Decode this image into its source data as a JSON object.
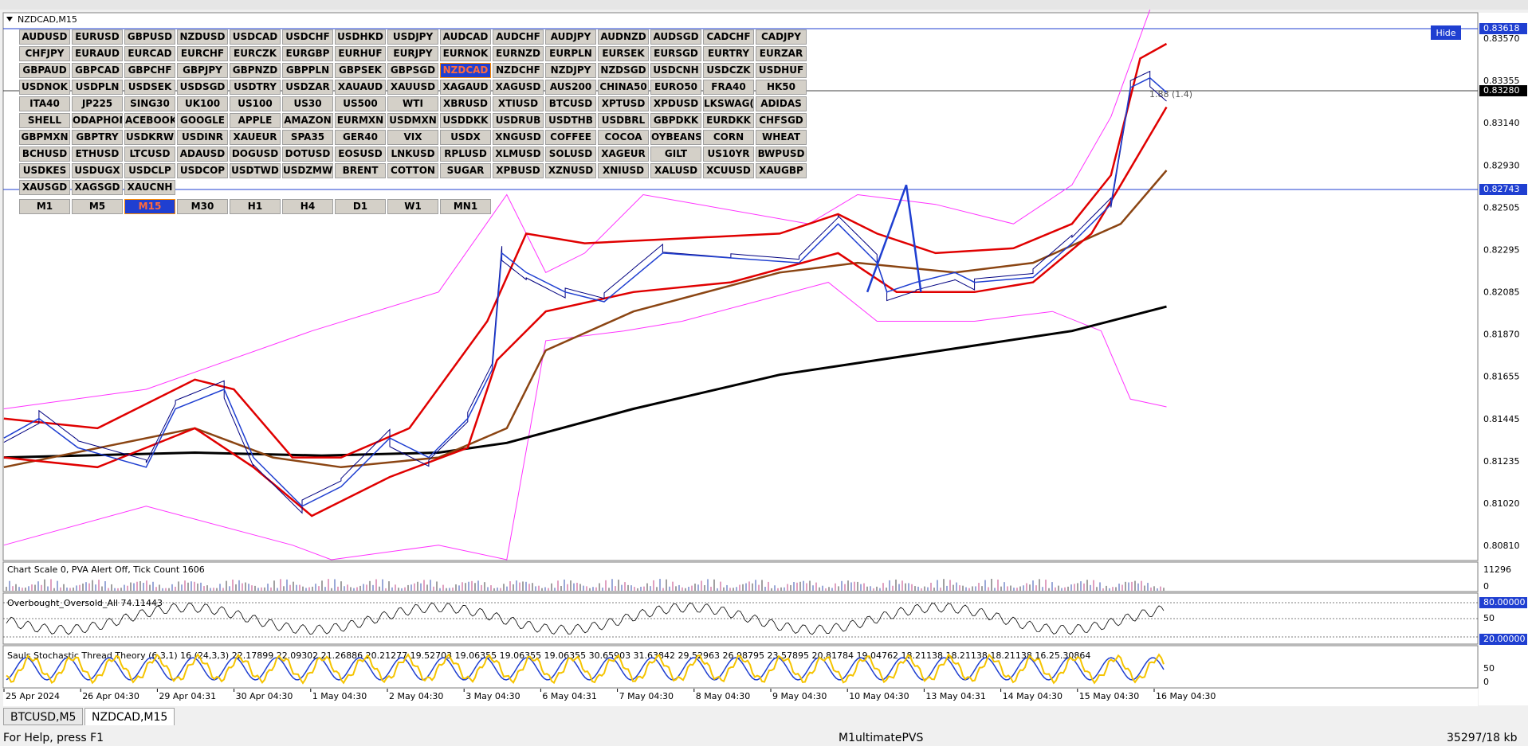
{
  "chart_window": {
    "title": "NZDCAD,M15",
    "hide_button": "Hide",
    "symbols": [
      [
        "AUDUSD",
        "EURUSD",
        "GBPUSD",
        "NZDUSD",
        "USDCAD",
        "USDCHF",
        "USDHKD",
        "USDJPY",
        "AUDCAD",
        "AUDCHF",
        "AUDJPY",
        "AUDNZD",
        "AUDSGD",
        "CADCHF",
        "CADJPY"
      ],
      [
        "CHFJPY",
        "EURAUD",
        "EURCAD",
        "EURCHF",
        "EURCZK",
        "EURGBP",
        "EURHUF",
        "EURJPY",
        "EURNOK",
        "EURNZD",
        "EURPLN",
        "EURSEK",
        "EURSGD",
        "EURTRY",
        "EURZAR"
      ],
      [
        "GBPAUD",
        "GBPCAD",
        "GBPCHF",
        "GBPJPY",
        "GBPNZD",
        "GBPPLN",
        "GBPSEK",
        "GBPSGD",
        "NZDCAD",
        "NZDCHF",
        "NZDJPY",
        "NZDSGD",
        "USDCNH",
        "USDCZK",
        "USDHUF"
      ],
      [
        "USDNOK",
        "USDPLN",
        "USDSEK",
        "USDSGD",
        "USDTRY",
        "USDZAR",
        "XAUAUD",
        "XAUUSD",
        "XAGAUD",
        "XAGUSD",
        "AUS200",
        "CHINA50",
        "EURO50",
        "FRA40",
        "HK50"
      ],
      [
        "ITA40",
        "JP225",
        "SING30",
        "UK100",
        "US100",
        "US30",
        "US500",
        "WTI",
        "XBRUSD",
        "XTIUSD",
        "BTCUSD",
        "XPTUSD",
        "XPDUSD",
        "LKSWAG(",
        "ADIDAS"
      ],
      [
        "SHELL",
        "ODAPHON",
        "ACEBOOK",
        "GOOGLE",
        "APPLE",
        "AMAZON",
        "EURMXN",
        "USDMXN",
        "USDDKK",
        "USDRUB",
        "USDTHB",
        "USDBRL",
        "GBPDKK",
        "EURDKK",
        "CHFSGD"
      ],
      [
        "GBPMXN",
        "GBPTRY",
        "USDKRW",
        "USDINR",
        "XAUEUR",
        "SPA35",
        "GER40",
        "VIX",
        "USDX",
        "XNGUSD",
        "COFFEE",
        "COCOA",
        "OYBEANS",
        "CORN",
        "WHEAT"
      ],
      [
        "BCHUSD",
        "ETHUSD",
        "LTCUSD",
        "ADAUSD",
        "DOGUSD",
        "DOTUSD",
        "EOSUSD",
        "LNKUSD",
        "RPLUSD",
        "XLMUSD",
        "SOLUSD",
        "XAGEUR",
        "GILT",
        "US10YR",
        "BWPUSD"
      ],
      [
        "USDKES",
        "USDUGX",
        "USDCLP",
        "USDCOP",
        "USDTWD",
        "USDZMW",
        "BRENT",
        "COTTON",
        "SUGAR",
        "XPBUSD",
        "XZNUSD",
        "XNIUSD",
        "XALUSD",
        "XCUUSD",
        "XAUGBP"
      ],
      [
        "XAUSGD",
        "XAGSGD",
        "XAUCNH"
      ]
    ],
    "selected_symbol": {
      "row": 2,
      "col": 8
    },
    "timeframes": [
      "M1",
      "M5",
      "M15",
      "M30",
      "H1",
      "H4",
      "D1",
      "W1",
      "MN1"
    ],
    "selected_timeframe": 2,
    "price_labels": [
      "0.83570",
      "0.83355",
      "0.83140",
      "0.82930",
      "0.82505",
      "0.82295",
      "0.82085",
      "0.81870",
      "0.81655",
      "0.81445",
      "0.81235",
      "0.81020",
      "0.80810"
    ],
    "price_markers": [
      {
        "label": "0.83618",
        "color": "#1f3fd1"
      },
      {
        "label": "0.83280",
        "color": "#000000"
      },
      {
        "label": "0.82743",
        "color": "#1f3fd1"
      }
    ],
    "annotation": "1.88 (1.4)",
    "volume": {
      "info": "Chart Scale  0,  PVA Alert Off,  Tick Count  1606",
      "axis": [
        "11296",
        "0"
      ]
    },
    "oscillator": {
      "title": "Overbought_Oversold_All 74.11443",
      "axis": [
        "80.00000",
        "50",
        "20.00000"
      ]
    },
    "stochastic": {
      "title": "Sauls Stochastic Thread Theory (6,3,1) 16 (24,3,3) 22.17899 22.09302 21.26886 20.21277 19.52703 19.06355 19.06355 19.06355 30.65903 31.63842 29.52963 26.98795 23.57895 20.81784 19.04762 18.21138 18.21138 18.21138 16.25.30864",
      "axis": [
        "50",
        "0"
      ]
    },
    "dates": [
      "25 Apr 2024",
      "26 Apr 04:30",
      "29 Apr 04:31",
      "30 Apr 04:30",
      "1 May 04:30",
      "2 May 04:30",
      "3 May 04:30",
      "6 May 04:31",
      "7 May 04:30",
      "8 May 04:30",
      "9 May 04:30",
      "10 May 04:30",
      "13 May 04:31",
      "14 May 04:30",
      "15 May 04:30",
      "16 May 04:30"
    ]
  },
  "tabs": {
    "items": [
      "BTCUSD,M5",
      "NZDCAD,M15"
    ],
    "active": 1
  },
  "status_bar": {
    "help": "For Help, press F1",
    "profile": "M1ultimatePVS",
    "traffic": "35297/18 kb"
  }
}
